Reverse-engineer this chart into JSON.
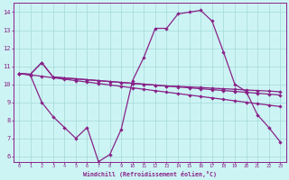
{
  "xlabel": "Windchill (Refroidissement éolien,°C)",
  "xlim": [
    -0.5,
    23.5
  ],
  "ylim": [
    5.7,
    14.5
  ],
  "xticks": [
    0,
    1,
    2,
    3,
    4,
    5,
    6,
    7,
    8,
    9,
    10,
    11,
    12,
    13,
    14,
    15,
    16,
    17,
    18,
    19,
    20,
    21,
    22,
    23
  ],
  "yticks": [
    6,
    7,
    8,
    9,
    10,
    11,
    12,
    13,
    14
  ],
  "background_color": "#cdf4f4",
  "line_color": "#882288",
  "grid_color": "#aadddd",
  "lines": [
    {
      "x": [
        0,
        1,
        2,
        3,
        4,
        5,
        6,
        7,
        8,
        9,
        10,
        11,
        12,
        13,
        14,
        15,
        16,
        17,
        18,
        19,
        20,
        21,
        22,
        23
      ],
      "y": [
        10.6,
        10.52,
        10.44,
        10.36,
        10.28,
        10.2,
        10.12,
        10.04,
        9.96,
        9.88,
        9.8,
        9.72,
        9.64,
        9.56,
        9.48,
        9.4,
        9.32,
        9.24,
        9.16,
        9.08,
        9.0,
        8.92,
        8.84,
        8.76
      ]
    },
    {
      "x": [
        0,
        1,
        2,
        3,
        4,
        5,
        6,
        7,
        8,
        9,
        10,
        11,
        12,
        13,
        14,
        15,
        16,
        17,
        18,
        19,
        20,
        21,
        22,
        23
      ],
      "y": [
        10.6,
        10.55,
        11.2,
        10.4,
        10.35,
        10.3,
        10.25,
        10.2,
        10.15,
        10.1,
        10.05,
        10.0,
        9.95,
        9.9,
        9.85,
        9.8,
        9.75,
        9.7,
        9.65,
        9.6,
        9.55,
        9.5,
        9.45,
        9.4
      ]
    },
    {
      "x": [
        0,
        1,
        2,
        3,
        4,
        5,
        6,
        7,
        8,
        9,
        10,
        11,
        12,
        13,
        14,
        15,
        16,
        17,
        18,
        19,
        20,
        21,
        22,
        23
      ],
      "y": [
        10.6,
        10.55,
        11.2,
        10.4,
        10.35,
        10.3,
        10.25,
        10.2,
        10.15,
        10.1,
        10.05,
        10.0,
        9.95,
        9.9,
        9.88,
        9.85,
        9.82,
        9.78,
        9.75,
        9.72,
        9.68,
        9.65,
        9.62,
        9.58
      ]
    },
    {
      "x": [
        0,
        1,
        2,
        3,
        4,
        5,
        6,
        7,
        8,
        9,
        10,
        11,
        12,
        13,
        14,
        15,
        16,
        17,
        18,
        19,
        20,
        21,
        22,
        23
      ],
      "y": [
        10.6,
        10.5,
        9.0,
        8.2,
        7.6,
        7.0,
        7.6,
        5.7,
        6.1,
        7.5,
        10.2,
        11.5,
        13.1,
        13.1,
        13.9,
        14.0,
        14.1,
        13.5,
        11.8,
        10.0,
        9.6,
        8.3,
        7.6,
        6.8
      ]
    }
  ]
}
